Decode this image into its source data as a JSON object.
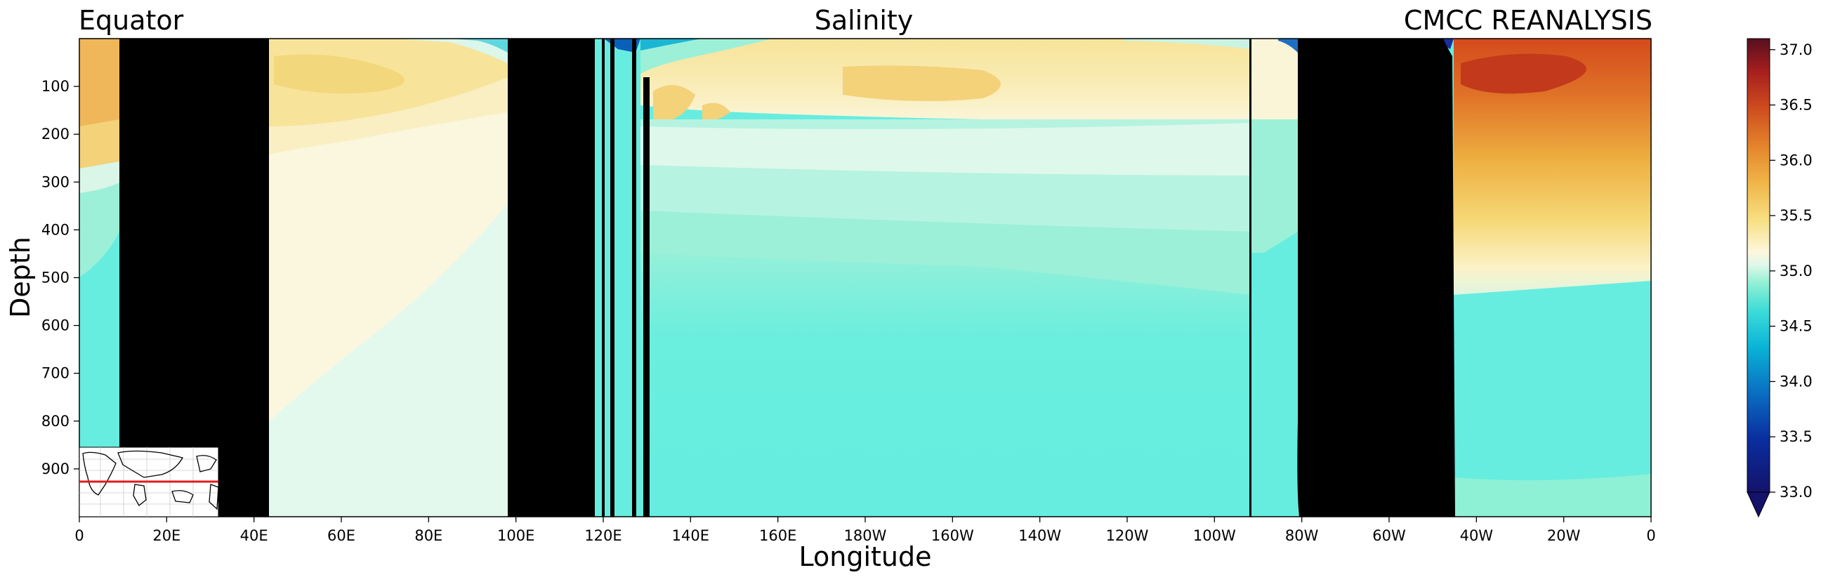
{
  "titles": {
    "left": "Equator",
    "center": "Salinity",
    "right": "CMCC REANALYSIS"
  },
  "chart_data": {
    "type": "heatmap",
    "title": "Salinity",
    "xlabel": "Longitude",
    "ylabel": "Depth",
    "x_ticks": [
      "0",
      "20E",
      "40E",
      "60E",
      "80E",
      "100E",
      "120E",
      "140E",
      "160E",
      "180W",
      "160W",
      "140W",
      "120W",
      "100W",
      "80W",
      "60W",
      "40W",
      "20W",
      "0"
    ],
    "y_ticks": [
      "100",
      "200",
      "300",
      "400",
      "500",
      "600",
      "700",
      "800",
      "900"
    ],
    "ylim": [
      1000,
      0
    ],
    "colorbar": {
      "range": [
        33.0,
        37.1
      ],
      "ticks": [
        "37.0",
        "36.5",
        "36.0",
        "35.5",
        "35.0",
        "34.5",
        "34.0",
        "33.5",
        "33.0"
      ],
      "extend": "min"
    },
    "land_masks_lon_deg": [
      [
        9,
        44
      ],
      [
        98,
        118
      ],
      [
        120,
        121
      ],
      [
        127,
        128
      ],
      [
        130,
        131
      ],
      [
        268,
        269
      ],
      [
        279,
        315
      ]
    ],
    "inset_map": "world map with equator line in red"
  }
}
